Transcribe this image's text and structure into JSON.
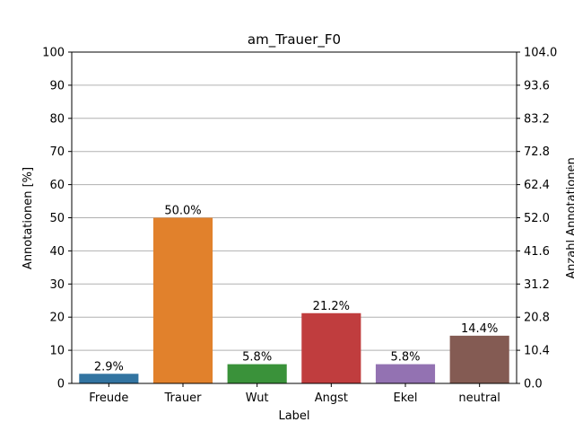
{
  "chart_data": {
    "type": "bar",
    "title": "am_Trauer_F0",
    "xlabel": "Label",
    "ylabel": "Annotationen [%]",
    "y2label": "Anzahl Annotationen",
    "categories": [
      "Freude",
      "Trauer",
      "Wut",
      "Angst",
      "Ekel",
      "neutral"
    ],
    "values": [
      2.9,
      50.0,
      5.8,
      21.2,
      5.8,
      14.4
    ],
    "value_labels": [
      "2.9%",
      "50.0%",
      "5.8%",
      "21.2%",
      "5.8%",
      "14.4%"
    ],
    "bar_colors": [
      "#3274a1",
      "#e1812c",
      "#3a923a",
      "#c03d3e",
      "#9372b2",
      "#845b53"
    ],
    "ylim": [
      0,
      100
    ],
    "yticks": [
      "0",
      "10",
      "20",
      "30",
      "40",
      "50",
      "60",
      "70",
      "80",
      "90",
      "100"
    ],
    "y2lim": [
      0,
      104
    ],
    "y2ticks": [
      "0.0",
      "10.4",
      "20.8",
      "31.2",
      "41.6",
      "52.0",
      "62.4",
      "72.8",
      "83.2",
      "93.6",
      "104.0"
    ],
    "grid": true
  }
}
